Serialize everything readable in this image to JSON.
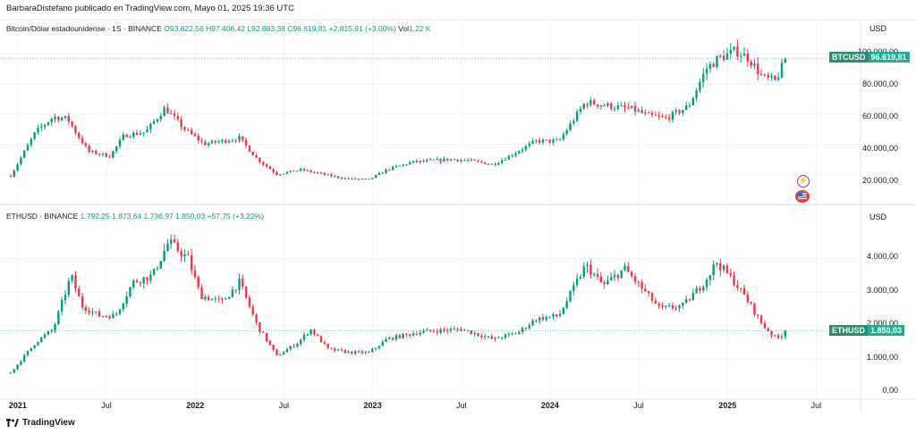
{
  "header": {
    "credit": "BarbaraDistefano publicado en TradingView.com, Mayo 01, 2025 19:36 UTC"
  },
  "footer": {
    "brand": "TradingView"
  },
  "colors": {
    "up": "#089981",
    "down": "#f23645",
    "price_line": "#22ab94"
  },
  "chart_data": [
    {
      "type": "candlestick",
      "symbol": "BTCUSD",
      "legend": {
        "name": "Bitcoin/Dólar estadounidense · 1S · BINANCE",
        "open": "O93.822,56",
        "high": "H97.406,42",
        "low": "L92.883,38",
        "close": "C96.619,81",
        "change": "+2.815,91 (+3,00%)",
        "volume_label": "Vol",
        "volume": "1,22 K"
      },
      "unit": "USD",
      "y_ticks": [
        "100.000,00",
        "80.000,00",
        "60.000,00",
        "40.000,00",
        "20.000,00"
      ],
      "y_tick_values": [
        100000,
        80000,
        60000,
        40000,
        20000
      ],
      "ylim": [
        10000,
        112000
      ],
      "last_price_label": "96.619,81",
      "last_price": 96619.81,
      "series": [
        {
          "t": 2020.96,
          "v": 19000
        },
        {
          "t": 2021.1,
          "v": 48000
        },
        {
          "t": 2021.2,
          "v": 58000
        },
        {
          "t": 2021.28,
          "v": 57000
        },
        {
          "t": 2021.32,
          "v": 49000
        },
        {
          "t": 2021.4,
          "v": 35000
        },
        {
          "t": 2021.52,
          "v": 32000
        },
        {
          "t": 2021.6,
          "v": 46000
        },
        {
          "t": 2021.72,
          "v": 48000
        },
        {
          "t": 2021.83,
          "v": 64000
        },
        {
          "t": 2021.94,
          "v": 50000
        },
        {
          "t": 2022.05,
          "v": 40000
        },
        {
          "t": 2022.15,
          "v": 42000
        },
        {
          "t": 2022.25,
          "v": 44000
        },
        {
          "t": 2022.35,
          "v": 30000
        },
        {
          "t": 2022.46,
          "v": 20000
        },
        {
          "t": 2022.6,
          "v": 23000
        },
        {
          "t": 2022.74,
          "v": 19500
        },
        {
          "t": 2022.85,
          "v": 17000
        },
        {
          "t": 2022.98,
          "v": 16600
        },
        {
          "t": 2023.08,
          "v": 23000
        },
        {
          "t": 2023.22,
          "v": 28000
        },
        {
          "t": 2023.33,
          "v": 29000
        },
        {
          "t": 2023.45,
          "v": 30000
        },
        {
          "t": 2023.55,
          "v": 29000
        },
        {
          "t": 2023.68,
          "v": 26500
        },
        {
          "t": 2023.8,
          "v": 34000
        },
        {
          "t": 2023.92,
          "v": 42000
        },
        {
          "t": 2024.05,
          "v": 42000
        },
        {
          "t": 2024.2,
          "v": 68000
        },
        {
          "t": 2024.35,
          "v": 65000
        },
        {
          "t": 2024.47,
          "v": 63000
        },
        {
          "t": 2024.55,
          "v": 59000
        },
        {
          "t": 2024.65,
          "v": 57000
        },
        {
          "t": 2024.78,
          "v": 65000
        },
        {
          "t": 2024.88,
          "v": 90000
        },
        {
          "t": 2024.95,
          "v": 97000
        },
        {
          "t": 2025.05,
          "v": 102000
        },
        {
          "t": 2025.12,
          "v": 97000
        },
        {
          "t": 2025.2,
          "v": 84000
        },
        {
          "t": 2025.27,
          "v": 82000
        },
        {
          "t": 2025.33,
          "v": 96600
        }
      ]
    },
    {
      "type": "candlestick",
      "symbol": "ETHUSD",
      "legend": {
        "name": "ETHUSD · BINANCE",
        "open": "1.792,25",
        "high": "1.873,64",
        "low": "1.736,97",
        "close": "1.850,03",
        "change": "+57,75 (+3,22%)"
      },
      "unit": "USD",
      "y_ticks": [
        "4.000,00",
        "3.000,00",
        "2.000,00",
        "1.000,00",
        "0,00"
      ],
      "y_tick_values": [
        4000,
        3000,
        2000,
        1000,
        0
      ],
      "ylim": [
        0,
        5000
      ],
      "last_price_label": "1.850,03",
      "last_price": 1850.03,
      "series": [
        {
          "t": 2020.96,
          "v": 600
        },
        {
          "t": 2021.1,
          "v": 1500
        },
        {
          "t": 2021.2,
          "v": 1900
        },
        {
          "t": 2021.3,
          "v": 3500
        },
        {
          "t": 2021.36,
          "v": 2600
        },
        {
          "t": 2021.46,
          "v": 2300
        },
        {
          "t": 2021.55,
          "v": 2300
        },
        {
          "t": 2021.65,
          "v": 3300
        },
        {
          "t": 2021.76,
          "v": 3500
        },
        {
          "t": 2021.85,
          "v": 4500
        },
        {
          "t": 2021.96,
          "v": 4000
        },
        {
          "t": 2022.03,
          "v": 2900
        },
        {
          "t": 2022.15,
          "v": 2700
        },
        {
          "t": 2022.25,
          "v": 3300
        },
        {
          "t": 2022.35,
          "v": 2000
        },
        {
          "t": 2022.46,
          "v": 1100
        },
        {
          "t": 2022.58,
          "v": 1500
        },
        {
          "t": 2022.65,
          "v": 1900
        },
        {
          "t": 2022.75,
          "v": 1300
        },
        {
          "t": 2022.88,
          "v": 1200
        },
        {
          "t": 2022.98,
          "v": 1200
        },
        {
          "t": 2023.08,
          "v": 1600
        },
        {
          "t": 2023.25,
          "v": 1800
        },
        {
          "t": 2023.35,
          "v": 1850
        },
        {
          "t": 2023.5,
          "v": 1900
        },
        {
          "t": 2023.68,
          "v": 1600
        },
        {
          "t": 2023.82,
          "v": 1800
        },
        {
          "t": 2023.92,
          "v": 2200
        },
        {
          "t": 2024.05,
          "v": 2300
        },
        {
          "t": 2024.2,
          "v": 3800
        },
        {
          "t": 2024.3,
          "v": 3200
        },
        {
          "t": 2024.42,
          "v": 3700
        },
        {
          "t": 2024.52,
          "v": 3100
        },
        {
          "t": 2024.62,
          "v": 2500
        },
        {
          "t": 2024.75,
          "v": 2600
        },
        {
          "t": 2024.87,
          "v": 3300
        },
        {
          "t": 2024.94,
          "v": 3900
        },
        {
          "t": 2025.04,
          "v": 3300
        },
        {
          "t": 2025.12,
          "v": 2700
        },
        {
          "t": 2025.2,
          "v": 2000
        },
        {
          "t": 2025.28,
          "v": 1600
        },
        {
          "t": 2025.33,
          "v": 1850
        }
      ]
    }
  ],
  "x_axis": {
    "ticks": [
      {
        "label": "2021",
        "t": 2021.0,
        "major": true
      },
      {
        "label": "Jul",
        "t": 2021.5,
        "major": false
      },
      {
        "label": "2022",
        "t": 2022.0,
        "major": true
      },
      {
        "label": "Jul",
        "t": 2022.5,
        "major": false
      },
      {
        "label": "2023",
        "t": 2023.0,
        "major": true
      },
      {
        "label": "Jul",
        "t": 2023.5,
        "major": false
      },
      {
        "label": "2024",
        "t": 2024.0,
        "major": true
      },
      {
        "label": "Jul",
        "t": 2024.5,
        "major": false
      },
      {
        "label": "2025",
        "t": 2025.0,
        "major": true
      },
      {
        "label": "Jul",
        "t": 2025.5,
        "major": false
      }
    ]
  }
}
